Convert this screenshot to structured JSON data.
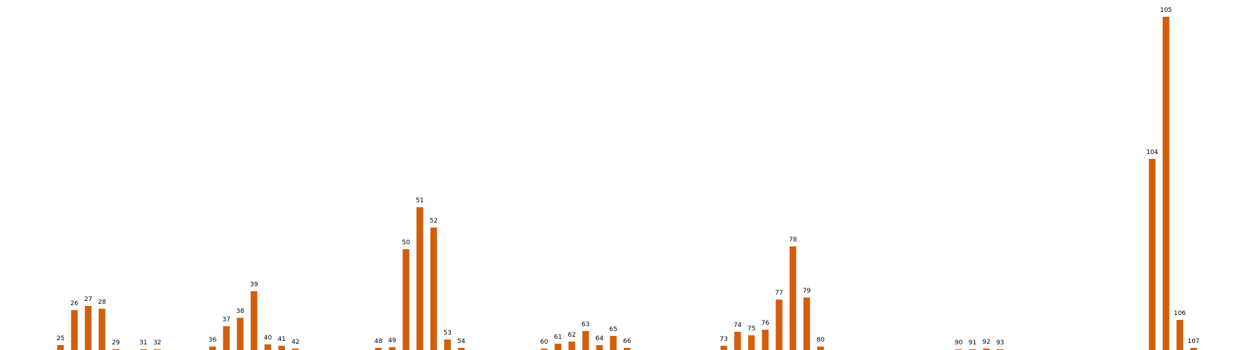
{
  "chart_data": {
    "type": "bar",
    "title": "",
    "xlabel": "",
    "ylabel": "",
    "grid": false,
    "colors": {
      "bar": "#d35f0c",
      "label": "#000000"
    },
    "xlim": [
      0,
      124
    ],
    "ylim": [
      0,
      480
    ],
    "categories": [
      "25",
      "26",
      "27",
      "28",
      "29",
      "31",
      "32",
      "36",
      "37",
      "38",
      "39",
      "40",
      "41",
      "42",
      "48",
      "49",
      "50",
      "51",
      "52",
      "53",
      "54",
      "60",
      "61",
      "62",
      "63",
      "64",
      "65",
      "66",
      "73",
      "74",
      "75",
      "76",
      "77",
      "78",
      "79",
      "80",
      "90",
      "91",
      "92",
      "93",
      "104",
      "105",
      "106",
      "107"
    ],
    "x": [
      25,
      26,
      27,
      28,
      29,
      31,
      32,
      36,
      37,
      38,
      39,
      40,
      41,
      42,
      48,
      49,
      50,
      51,
      52,
      53,
      54,
      60,
      61,
      62,
      63,
      64,
      65,
      66,
      73,
      74,
      75,
      76,
      77,
      78,
      79,
      80,
      90,
      91,
      92,
      93,
      104,
      105,
      106,
      107
    ],
    "values": [
      7,
      57,
      63,
      59,
      1,
      1,
      1,
      5,
      34,
      46,
      84,
      8,
      6,
      2,
      3,
      4,
      144,
      204,
      175,
      15,
      3,
      2,
      9,
      12,
      27,
      7,
      20,
      3,
      6,
      26,
      21,
      29,
      72,
      148,
      75,
      5,
      1,
      1,
      2,
      1,
      273,
      476,
      43,
      3
    ]
  }
}
